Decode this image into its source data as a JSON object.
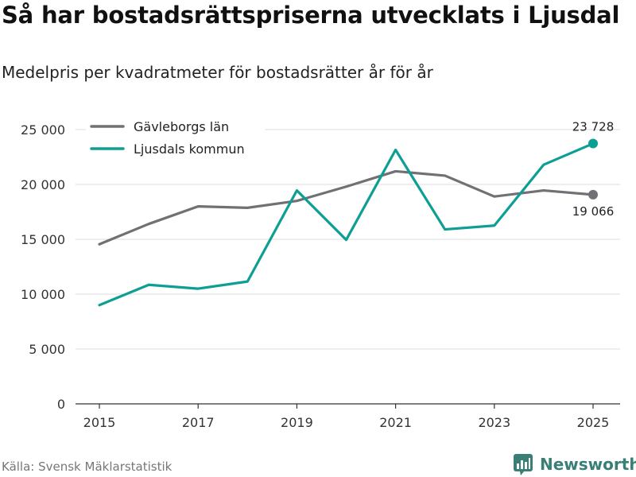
{
  "title": "Så har bostadsrättspriserna utvecklats i Ljusdal",
  "subtitle": "Medelpris per kvadratmeter för bostadsrätter år för år",
  "source": "Källa: Svensk Mäklarstatistik",
  "brand": "Newsworthy",
  "colors": {
    "gavleborg": "#727075",
    "ljusdal": "#0e9f94",
    "grid": "#dddddd",
    "brand": "#3a7f76"
  },
  "chart_data": {
    "type": "line",
    "title": "Så har bostadsrättspriserna utvecklats i Ljusdal",
    "subtitle": "Medelpris per kvadratmeter för bostadsrätter år för år",
    "xlabel": "",
    "ylabel": "",
    "x": [
      2015,
      2016,
      2017,
      2018,
      2019,
      2020,
      2021,
      2022,
      2023,
      2024,
      2025
    ],
    "xticks": [
      "2015",
      "2017",
      "2019",
      "2021",
      "2023",
      "2025"
    ],
    "yticks": [
      "0",
      "5 000",
      "10 000",
      "15 000",
      "20 000",
      "25 000"
    ],
    "ylim": [
      0,
      26000
    ],
    "grid": true,
    "legend_position": "top-left",
    "series": [
      {
        "name": "Gävleborgs län",
        "color": "#727075",
        "values": [
          14550,
          16400,
          18000,
          17870,
          18500,
          19800,
          21200,
          20800,
          18900,
          19450,
          19066
        ],
        "end_label": "19 066"
      },
      {
        "name": "Ljusdals kommun",
        "color": "#0e9f94",
        "values": [
          9000,
          10850,
          10500,
          11150,
          19450,
          14950,
          23150,
          15900,
          16250,
          21800,
          23728
        ],
        "end_label": "23 728"
      }
    ]
  }
}
